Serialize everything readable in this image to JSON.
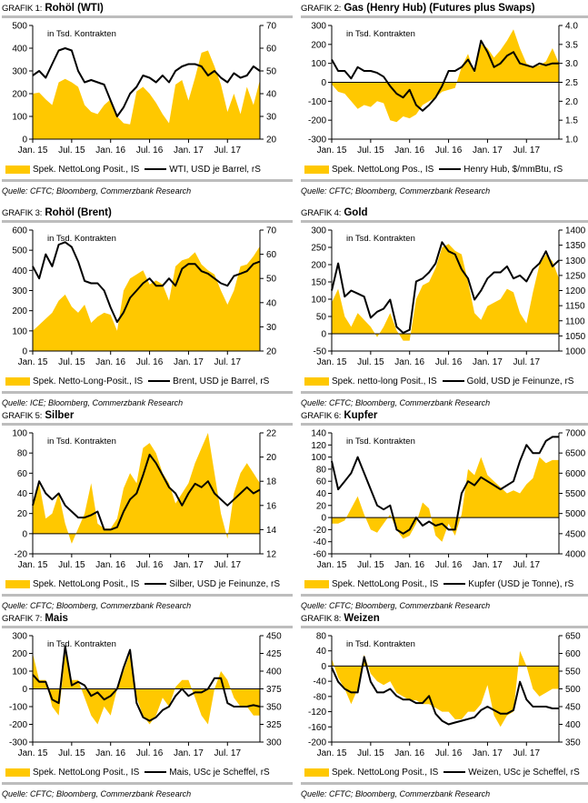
{
  "annotation": "in Tsd. Kontrakten",
  "colors": {
    "area": "#FFC800",
    "line": "#000000",
    "rule": "#BDBDBD"
  },
  "x_tick_labels": [
    "Jan. 15",
    "Jul. 15",
    "Jan. 16",
    "Jul. 16",
    "Jan. 17",
    "Jul. 17"
  ],
  "chart_data": [
    {
      "type": "area+line",
      "prefix": "GRAFIK 1:",
      "title": "Rohöl (WTI)",
      "source": "Quelle: CFTC; Bloomberg, Commerzbank Research",
      "legend_area": "Spek. NettoLong Posit., IS",
      "legend_line": "WTI, USD je Barrel, rS",
      "left_axis": {
        "ticks": [
          0,
          100,
          200,
          300,
          400,
          500
        ],
        "range": [
          0,
          500
        ]
      },
      "right_axis": {
        "ticks": [
          20,
          30,
          40,
          50,
          60,
          70
        ],
        "range": [
          20,
          70
        ]
      },
      "x_start": "2015-01",
      "x_end": "2017-10",
      "area_values": [
        200,
        205,
        175,
        150,
        250,
        265,
        250,
        230,
        150,
        120,
        110,
        150,
        175,
        100,
        70,
        65,
        210,
        230,
        200,
        160,
        110,
        70,
        240,
        260,
        170,
        270,
        380,
        390,
        320,
        240,
        120,
        200,
        110,
        230,
        150,
        260
      ],
      "line_values": [
        48,
        50,
        47,
        53,
        59,
        60,
        59,
        50,
        45,
        46,
        45,
        44,
        37,
        30,
        34,
        40,
        43,
        48,
        47,
        45,
        48,
        45,
        50,
        52,
        53,
        53,
        52,
        48,
        50,
        47,
        45,
        49,
        47,
        48,
        52,
        50
      ]
    },
    {
      "type": "area+line",
      "prefix": "GRAFIK 2:",
      "title": "Gas (Henry Hub) (Futures plus Swaps)",
      "source": "Quelle: CFTC; Bloomberg, Commerzbank Research",
      "legend_area": "Spek. NettoLong Pos., IS",
      "legend_line": "Henry Hub, $/mmBtu, rS",
      "left_axis": {
        "ticks": [
          -300,
          -200,
          -100,
          0,
          100,
          200,
          300
        ],
        "range": [
          -300,
          300
        ]
      },
      "right_axis": {
        "ticks": [
          1.0,
          1.5,
          2.0,
          2.5,
          3.0,
          3.5,
          4.0
        ],
        "range": [
          1.0,
          4.0
        ]
      },
      "x_start": "2015-01",
      "x_end": "2017-10",
      "area_values": [
        -10,
        -50,
        -60,
        -100,
        -140,
        -120,
        -130,
        -100,
        -110,
        -200,
        -210,
        -180,
        -190,
        -170,
        -120,
        -100,
        -80,
        -50,
        -40,
        -30,
        80,
        150,
        50,
        200,
        180,
        130,
        170,
        220,
        280,
        180,
        100,
        80,
        90,
        110,
        180,
        100
      ],
      "line_values": [
        3.1,
        2.8,
        2.8,
        2.6,
        2.9,
        2.8,
        2.8,
        2.75,
        2.65,
        2.4,
        2.2,
        2.1,
        2.3,
        1.9,
        1.75,
        1.9,
        2.1,
        2.4,
        2.8,
        2.8,
        2.9,
        3.1,
        2.8,
        3.6,
        3.3,
        2.9,
        3.0,
        3.2,
        3.3,
        3.0,
        2.95,
        2.9,
        3.0,
        2.95,
        3.0,
        3.0
      ]
    },
    {
      "type": "area+line",
      "prefix": "GRAFIK 3:",
      "title": "Rohöl (Brent)",
      "source": "Quelle: ICE; Bloomberg, Commerzbank Research",
      "legend_area": "Spek. Netto-Long-Posit., IS",
      "legend_line": "Brent, USD je Barrel, rS",
      "left_axis": {
        "ticks": [
          0,
          100,
          200,
          300,
          400,
          500,
          600
        ],
        "range": [
          0,
          600
        ]
      },
      "right_axis": {
        "ticks": [
          20,
          30,
          40,
          50,
          60,
          70
        ],
        "range": [
          20,
          70
        ]
      },
      "x_start": "2015-01",
      "x_end": "2017-10",
      "area_values": [
        100,
        130,
        160,
        190,
        250,
        280,
        220,
        190,
        230,
        140,
        170,
        190,
        180,
        100,
        300,
        360,
        380,
        400,
        330,
        350,
        330,
        250,
        420,
        450,
        460,
        490,
        430,
        400,
        380,
        300,
        230,
        300,
        420,
        430,
        470,
        520
      ],
      "line_values": [
        55,
        50,
        60,
        55,
        64,
        65,
        63,
        57,
        49,
        48,
        48,
        45,
        38,
        32,
        36,
        42,
        45,
        48,
        50,
        47,
        47,
        50,
        47,
        54,
        56,
        56,
        53,
        52,
        50,
        48,
        47,
        51,
        52,
        53,
        56,
        57
      ]
    },
    {
      "type": "area+line",
      "prefix": "GRAFIK 4:",
      "title": "Gold",
      "source": "Quelle: CFTC; Bloomberg, Commerzbank Research",
      "legend_area": "Spek. netto-long Posit., IS",
      "legend_line": "Gold, USD je Feinunze, rS",
      "left_axis": {
        "ticks": [
          -50,
          0,
          50,
          100,
          150,
          200,
          250,
          300
        ],
        "range": [
          -50,
          300
        ]
      },
      "right_axis": {
        "ticks": [
          1000,
          1050,
          1100,
          1150,
          1200,
          1250,
          1300,
          1350,
          1400
        ],
        "range": [
          1000,
          1400
        ]
      },
      "x_start": "2015-01",
      "x_end": "2017-10",
      "area_values": [
        90,
        130,
        50,
        20,
        60,
        40,
        20,
        -10,
        20,
        60,
        10,
        -20,
        -20,
        100,
        140,
        150,
        190,
        250,
        260,
        240,
        230,
        150,
        60,
        40,
        80,
        90,
        100,
        130,
        120,
        60,
        30,
        120,
        200,
        230,
        210,
        160
      ],
      "line_values": [
        1200,
        1290,
        1180,
        1200,
        1190,
        1180,
        1110,
        1130,
        1140,
        1170,
        1080,
        1060,
        1070,
        1230,
        1240,
        1260,
        1290,
        1360,
        1330,
        1320,
        1270,
        1240,
        1170,
        1200,
        1240,
        1260,
        1260,
        1280,
        1240,
        1250,
        1230,
        1270,
        1290,
        1330,
        1280,
        1300
      ]
    },
    {
      "type": "area+line",
      "prefix": "GRAFIK 5:",
      "title": "Silber",
      "source": "Quelle: CFTC; Bloomberg, Commerzbank Research",
      "legend_area": "Spek. NettoLong Posit., IS",
      "legend_line": "Silber, USD je Feinunze, rS",
      "left_axis": {
        "ticks": [
          -20,
          0,
          20,
          40,
          60,
          80,
          100
        ],
        "range": [
          -20,
          100
        ]
      },
      "right_axis": {
        "ticks": [
          12,
          14,
          16,
          18,
          20,
          22
        ],
        "range": [
          12,
          22
        ]
      },
      "x_start": "2015-01",
      "x_end": "2017-10",
      "area_values": [
        30,
        50,
        15,
        20,
        40,
        10,
        -10,
        5,
        20,
        50,
        10,
        5,
        5,
        15,
        45,
        60,
        50,
        85,
        90,
        80,
        60,
        50,
        30,
        40,
        50,
        70,
        85,
        100,
        60,
        20,
        -5,
        40,
        60,
        70,
        60,
        50
      ],
      "line_values": [
        16,
        18,
        17,
        16.5,
        17,
        16,
        15.5,
        15,
        15,
        15.2,
        15.5,
        14,
        14,
        14.2,
        15.5,
        16.5,
        17,
        18.5,
        20.2,
        19.5,
        18.5,
        17.5,
        17,
        16,
        17,
        17.8,
        17.5,
        18,
        17,
        16.5,
        16,
        16.5,
        17,
        17.5,
        17,
        17.3
      ]
    },
    {
      "type": "area+line",
      "prefix": "GRAFIK 6:",
      "title": "Kupfer",
      "source": "Quelle: CFTC; Bloomberg, Commerzbank Research",
      "legend_area": "Spek. NettoLong Posit., IS",
      "legend_line": "Kupfer (USD je Tonne), rS",
      "left_axis": {
        "ticks": [
          -60,
          -40,
          -20,
          0,
          20,
          40,
          60,
          80,
          100,
          120,
          140
        ],
        "range": [
          -60,
          140
        ]
      },
      "right_axis": {
        "ticks": [
          4000,
          4500,
          5000,
          5500,
          6000,
          6500,
          7000
        ],
        "range": [
          4000,
          7000
        ]
      },
      "x_start": "2015-01",
      "x_end": "2017-10",
      "area_values": [
        -10,
        -10,
        -5,
        15,
        35,
        5,
        -20,
        -25,
        -10,
        5,
        -20,
        -35,
        -30,
        -10,
        25,
        15,
        -30,
        -40,
        -10,
        -30,
        5,
        80,
        70,
        100,
        70,
        60,
        50,
        40,
        45,
        40,
        55,
        65,
        100,
        90,
        95,
        95
      ],
      "line_values": [
        6300,
        5600,
        5800,
        6000,
        6400,
        6000,
        5600,
        5200,
        5100,
        5200,
        4600,
        4500,
        4600,
        4900,
        4700,
        4800,
        4700,
        4750,
        4600,
        4600,
        5500,
        5800,
        5700,
        5900,
        5800,
        5700,
        5600,
        5700,
        5800,
        6300,
        6700,
        6500,
        6500,
        6800,
        6900,
        6900
      ]
    },
    {
      "type": "area+line",
      "prefix": "GRAFIK 7:",
      "title": "Mais",
      "source": "Quelle: CFTC; Bloomberg, Commerzbank Research",
      "legend_area": "Spek. NettoLong Posit., IS",
      "legend_line": "Mais, USc je Scheffel, rS",
      "left_axis": {
        "ticks": [
          -300,
          -200,
          -100,
          0,
          100,
          200,
          300
        ],
        "range": [
          -300,
          300
        ]
      },
      "right_axis": {
        "ticks": [
          300,
          325,
          350,
          375,
          400,
          425,
          450
        ],
        "range": [
          300,
          450
        ]
      },
      "x_start": "2015-01",
      "x_end": "2017-10",
      "area_values": [
        200,
        50,
        50,
        -100,
        -150,
        200,
        50,
        50,
        -50,
        -150,
        -200,
        -100,
        -150,
        0,
        100,
        200,
        -50,
        -150,
        -200,
        -150,
        -50,
        -100,
        10,
        50,
        50,
        -50,
        -150,
        -200,
        0,
        100,
        50,
        -50,
        -100,
        -100,
        -150,
        -150
      ],
      "line_values": [
        395,
        385,
        385,
        360,
        355,
        435,
        380,
        385,
        380,
        365,
        370,
        360,
        365,
        375,
        405,
        430,
        355,
        335,
        330,
        335,
        345,
        350,
        365,
        375,
        365,
        370,
        370,
        375,
        390,
        390,
        355,
        350,
        350,
        350,
        352,
        350
      ]
    },
    {
      "type": "area+line",
      "prefix": "GRAFIK 8:",
      "title": "Weizen",
      "source": "Quelle: CFTC; Bloomberg, Commerzbank Research",
      "legend_area": "Spek. NettoLong Posit., IS",
      "legend_line": "Weizen, USc je Scheffel, rS",
      "left_axis": {
        "ticks": [
          -200,
          -160,
          -120,
          -80,
          -40,
          0,
          40,
          80
        ],
        "range": [
          -200,
          80
        ]
      },
      "right_axis": {
        "ticks": [
          350,
          400,
          450,
          500,
          550,
          600,
          650
        ],
        "range": [
          350,
          650
        ]
      },
      "x_start": "2015-01",
      "x_end": "2017-10",
      "area_values": [
        20,
        -30,
        -60,
        -100,
        -60,
        30,
        -20,
        -40,
        -50,
        -40,
        -70,
        -80,
        -90,
        -90,
        -100,
        -100,
        -110,
        -120,
        -120,
        -140,
        -140,
        -120,
        -120,
        -100,
        -50,
        -130,
        -160,
        -130,
        -120,
        40,
        0,
        -60,
        -80,
        -70,
        -60,
        -60
      ],
      "line_values": [
        560,
        520,
        500,
        490,
        490,
        590,
        520,
        490,
        490,
        500,
        480,
        470,
        470,
        460,
        460,
        480,
        430,
        410,
        400,
        405,
        410,
        415,
        420,
        440,
        450,
        440,
        430,
        430,
        440,
        520,
        470,
        450,
        450,
        450,
        445,
        445
      ]
    }
  ]
}
